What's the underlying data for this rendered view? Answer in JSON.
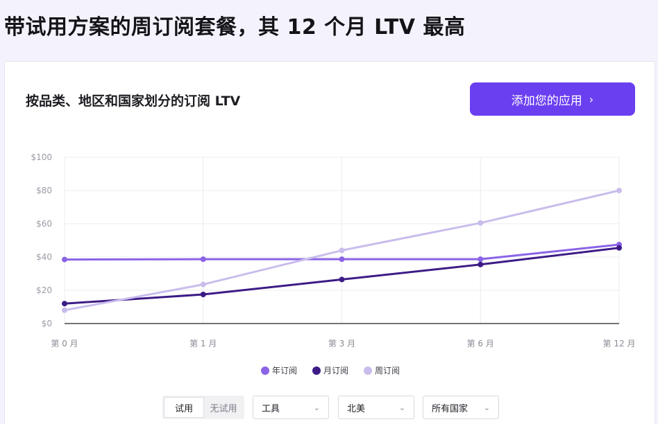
{
  "page": {
    "title": "带试用方案的周订阅套餐，其 12 个月 LTV 最高"
  },
  "card": {
    "title": "按品类、地区和国家划分的订阅 LTV",
    "cta_label": "添加您的应用",
    "cta_icon": "chevron-right-icon"
  },
  "chart_data": {
    "type": "line",
    "categories": [
      "第 0 月",
      "第 1 月",
      "第 3 月",
      "第 6 月",
      "第 12 月"
    ],
    "y_ticks": [
      "$0",
      "$20",
      "$40",
      "$60",
      "$80",
      "$100"
    ],
    "ylim": [
      0,
      100
    ],
    "grid": true,
    "legend_position": "bottom",
    "series": [
      {
        "name": "年订阅",
        "color": "#8a63e6",
        "values": [
          38.5,
          38.7,
          38.7,
          38.7,
          47.5
        ]
      },
      {
        "name": "月订阅",
        "color": "#3d1b86",
        "values": [
          12,
          17.5,
          26.5,
          35.5,
          45.5
        ]
      },
      {
        "name": "周订阅",
        "color": "#c9bdec",
        "values": [
          8,
          23.5,
          44,
          60.5,
          80
        ]
      }
    ]
  },
  "filters": {
    "trial_options": [
      "试用",
      "无试用"
    ],
    "trial_selected": "试用",
    "category_selected": "工具",
    "region_selected": "北美",
    "country_selected": "所有国家"
  }
}
